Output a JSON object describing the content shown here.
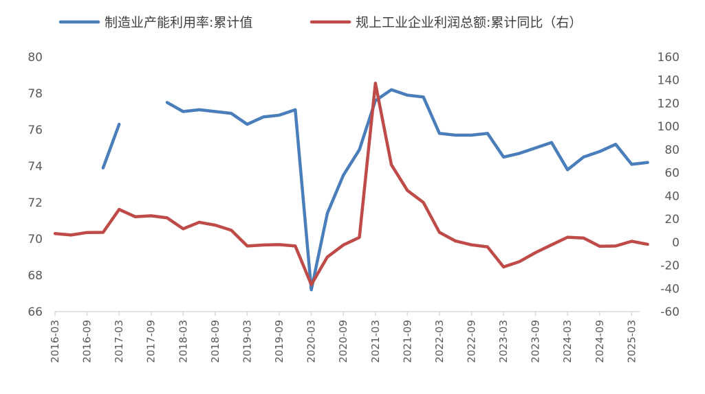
{
  "chart_data": {
    "type": "line",
    "x": [
      "2016-03",
      "2016-06",
      "2016-09",
      "2016-12",
      "2017-03",
      "2017-06",
      "2017-09",
      "2017-12",
      "2018-03",
      "2018-06",
      "2018-09",
      "2018-12",
      "2019-03",
      "2019-06",
      "2019-09",
      "2019-12",
      "2020-03",
      "2020-06",
      "2020-09",
      "2020-12",
      "2021-03",
      "2021-06",
      "2021-09",
      "2021-12",
      "2022-03",
      "2022-06",
      "2022-09",
      "2022-12",
      "2023-03",
      "2023-06",
      "2023-09",
      "2023-12",
      "2024-03",
      "2024-06",
      "2024-09",
      "2024-12",
      "2025-03",
      "2025-06"
    ],
    "x_tick_labels": [
      "2016-03",
      "2016-09",
      "2017-03",
      "2017-09",
      "2018-03",
      "2018-09",
      "2019-03",
      "2019-09",
      "2020-03",
      "2020-09",
      "2021-03",
      "2021-09",
      "2022-03",
      "2022-09",
      "2023-03",
      "2023-09",
      "2024-03",
      "2024-09",
      "2025-03"
    ],
    "series": [
      {
        "name": "制造业产能利用率:累计值",
        "axis": "left",
        "color": "#4a7ebb",
        "values": [
          null,
          null,
          null,
          73.9,
          76.3,
          null,
          null,
          77.5,
          77.0,
          77.1,
          77.0,
          76.9,
          76.3,
          76.7,
          76.8,
          77.1,
          67.2,
          71.4,
          73.5,
          74.9,
          77.6,
          78.2,
          77.9,
          77.8,
          75.8,
          75.7,
          75.7,
          75.8,
          74.5,
          74.7,
          75.0,
          75.3,
          73.8,
          74.5,
          74.8,
          75.2,
          74.1,
          74.2
        ]
      },
      {
        "name": "规上工业企业利润总额:累计同比（右）",
        "axis": "right",
        "color": "#be4b48",
        "values": [
          7.4,
          6.2,
          8.4,
          8.5,
          28.3,
          22.0,
          22.8,
          21.0,
          11.6,
          17.2,
          14.7,
          10.3,
          -3.3,
          -2.4,
          -2.1,
          -3.3,
          -36.7,
          -12.8,
          -2.4,
          4.1,
          137.3,
          66.9,
          44.7,
          34.3,
          8.5,
          1.0,
          -2.3,
          -4.0,
          -21.4,
          -16.8,
          -9.0,
          -2.3,
          4.3,
          3.6,
          -3.5,
          -3.3,
          0.8,
          -1.8
        ]
      }
    ],
    "y_left": {
      "min": 66,
      "max": 80,
      "ticks": [
        66,
        68,
        70,
        72,
        74,
        76,
        78,
        80
      ]
    },
    "y_right": {
      "min": -60,
      "max": 160,
      "ticks": [
        -60,
        -40,
        -20,
        0,
        20,
        40,
        60,
        80,
        100,
        120,
        140,
        160
      ]
    },
    "legend": {
      "placement": "top"
    },
    "grid": false,
    "title": "",
    "xlabel": "",
    "ylabel": ""
  }
}
